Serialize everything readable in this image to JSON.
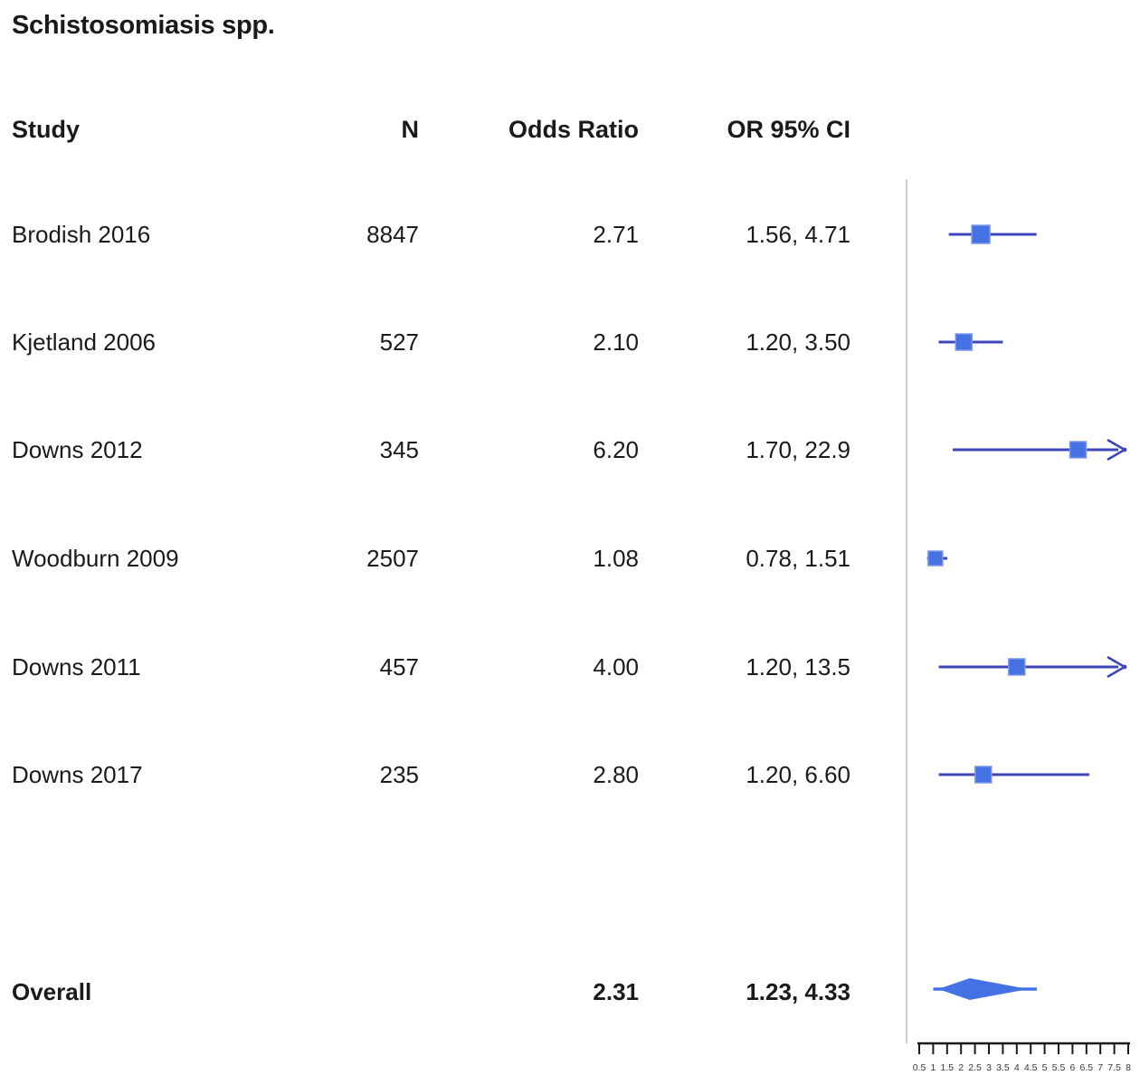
{
  "chart_data": {
    "type": "forest",
    "title": "Schistosomiasis spp.",
    "columns": {
      "study": "Study",
      "n": "N",
      "or": "Odds Ratio",
      "ci": "OR 95% CI"
    },
    "studies": [
      {
        "study": "Brodish 2016",
        "n": "8847",
        "or_label": "2.71",
        "ci_label": "1.56, 4.71",
        "or": 2.71,
        "lo": 1.56,
        "hi": 4.71,
        "arrow": false,
        "square": 20
      },
      {
        "study": "Kjetland 2006",
        "n": "527",
        "or_label": "2.10",
        "ci_label": "1.20, 3.50",
        "or": 2.1,
        "lo": 1.2,
        "hi": 3.5,
        "arrow": false,
        "square": 18
      },
      {
        "study": "Downs 2012",
        "n": "345",
        "or_label": "6.20",
        "ci_label": "1.70, 22.9",
        "or": 6.2,
        "lo": 1.7,
        "hi": 22.9,
        "arrow": true,
        "square": 18
      },
      {
        "study": "Woodburn 2009",
        "n": "2507",
        "or_label": "1.08",
        "ci_label": "0.78, 1.51",
        "or": 1.08,
        "lo": 0.78,
        "hi": 1.51,
        "arrow": false,
        "square": 16
      },
      {
        "study": "Downs 2011",
        "n": "457",
        "or_label": "4.00",
        "ci_label": "1.20, 13.5",
        "or": 4.0,
        "lo": 1.2,
        "hi": 13.5,
        "arrow": true,
        "square": 18
      },
      {
        "study": "Downs 2017",
        "n": "235",
        "or_label": "2.80",
        "ci_label": "1.20, 6.60",
        "or": 2.8,
        "lo": 1.2,
        "hi": 6.6,
        "arrow": false,
        "square": 18
      }
    ],
    "overall": {
      "label": "Overall",
      "or_label": "2.31",
      "ci_label": "1.23, 4.33",
      "or": 2.31,
      "lo": 1.23,
      "hi": 4.33
    },
    "axis": {
      "min": 0.5,
      "max": 8,
      "step": 0.5,
      "scale": "linear",
      "tick_labels": [
        "0.5",
        "1",
        "1.5",
        "2",
        "2.5",
        "3",
        "3.5",
        "4",
        "4.5",
        "5",
        "5.5",
        "6",
        "6.5",
        "7",
        "7.5",
        "8"
      ]
    },
    "legend": null,
    "colors": {
      "marker": "#4472e2",
      "marker_border": "#7b97ea",
      "ci_line": "#3d45b8",
      "axis": "#1a1a1a",
      "panel_line": "#cccccc",
      "text": "#1a1a1a"
    }
  }
}
